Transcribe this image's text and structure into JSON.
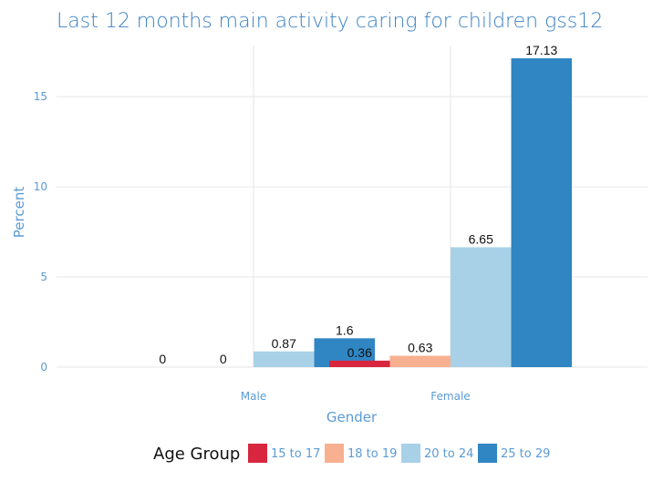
{
  "chart_data": {
    "type": "bar",
    "title": "Last 12 months main activity caring for children gss12",
    "xlabel": "Gender",
    "ylabel": "Percent",
    "categories": [
      "Male",
      "Female"
    ],
    "series": [
      {
        "name": "15 to 17",
        "color": "#d7263d",
        "values": [
          0,
          0.36
        ],
        "labels": [
          "0",
          "0.36"
        ]
      },
      {
        "name": "18 to 19",
        "color": "#f7b090",
        "values": [
          0,
          0.63
        ],
        "labels": [
          "0",
          "0.63"
        ]
      },
      {
        "name": "20 to 24",
        "color": "#a8d1e7",
        "values": [
          0.87,
          6.65
        ],
        "labels": [
          "0.87",
          "6.65"
        ]
      },
      {
        "name": "25 to 29",
        "color": "#2f86c3",
        "values": [
          1.6,
          17.13
        ],
        "labels": [
          "1.6",
          "17.13"
        ]
      }
    ],
    "yticks": [
      0,
      5,
      10,
      15
    ],
    "ylim": [
      0,
      17.13
    ],
    "grid": true,
    "legend_title": "Age Group",
    "legend_position": "bottom"
  }
}
